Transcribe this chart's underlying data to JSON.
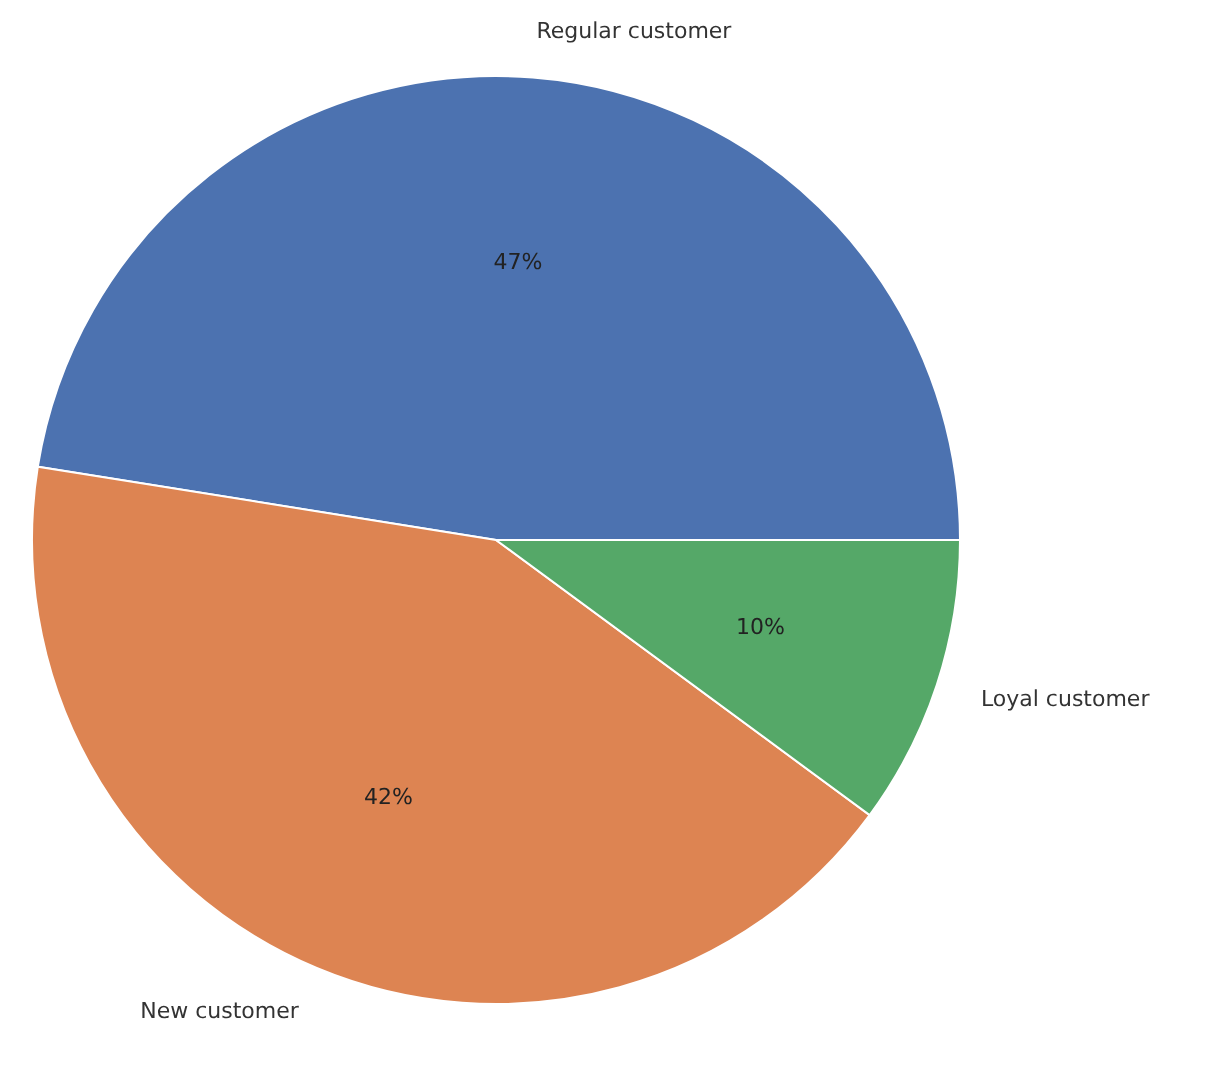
{
  "chart_data": {
    "type": "pie",
    "categories": [
      "Regular customer",
      "New customer",
      "Loyal customer"
    ],
    "values": [
      47,
      42,
      10
    ],
    "colors": [
      "#4c72b0",
      "#dd8452",
      "#55a868"
    ],
    "value_labels": [
      "47%",
      "42%",
      "10%"
    ],
    "legend": false
  }
}
